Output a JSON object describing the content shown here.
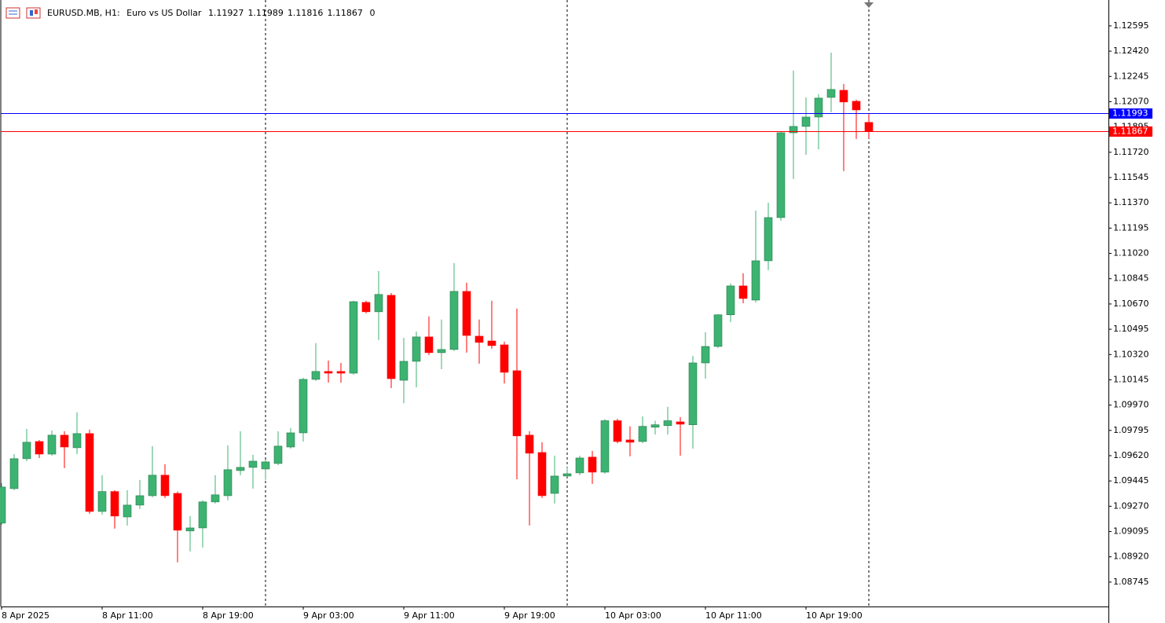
{
  "header": {
    "symbol": "EURUSD.MB, H1:",
    "description": "Euro vs US Dollar",
    "ohlc": [
      1.11927,
      1.11989,
      1.11816,
      1.11867
    ],
    "spread": 0
  },
  "chart_data": {
    "type": "candlestick",
    "categories": [
      "8 Apr 2025",
      null,
      null,
      null,
      null,
      null,
      null,
      null,
      "8 Apr 11:00",
      null,
      null,
      null,
      null,
      null,
      null,
      null,
      "8 Apr 19:00",
      null,
      null,
      null,
      null,
      null,
      null,
      null,
      "9 Apr 03:00",
      null,
      null,
      null,
      null,
      null,
      null,
      null,
      "9 Apr 11:00",
      null,
      null,
      null,
      null,
      null,
      null,
      null,
      "9 Apr 19:00",
      null,
      null,
      null,
      null,
      null,
      null,
      null,
      "10 Apr 03:00",
      null,
      null,
      null,
      null,
      null,
      null,
      null,
      "10 Apr 11:00",
      null,
      null,
      null,
      null,
      null,
      null,
      null,
      "10 Apr 19:00",
      null,
      null,
      null,
      null,
      null
    ],
    "open": [
      1.09153,
      1.09392,
      1.09599,
      1.09718,
      1.09631,
      1.09762,
      1.09675,
      1.09773,
      1.09234,
      1.09372,
      1.09196,
      1.09278,
      1.09343,
      1.09485,
      1.09359,
      1.09099,
      1.0912,
      1.093,
      1.09343,
      1.09517,
      1.09539,
      1.09528,
      1.09566,
      1.0968,
      1.09778,
      1.10148,
      1.10203,
      1.10203,
      1.10191,
      1.10681,
      1.10616,
      1.1073,
      1.10142,
      1.10273,
      1.10442,
      1.10333,
      1.10355,
      1.10757,
      1.10447,
      1.10414,
      1.10387,
      1.10208,
      1.09762,
      1.09642,
      1.09359,
      1.09479,
      1.09501,
      1.0961,
      1.09506,
      1.09862,
      1.09729,
      1.09718,
      1.09817,
      1.09828,
      1.09854,
      1.09834,
      1.10262,
      1.10376,
      1.10595,
      1.10795,
      1.10697,
      1.10969,
      1.11268,
      1.11855,
      1.11899,
      1.11964,
      1.121,
      1.12149,
      1.12073,
      1.11927
    ],
    "high": [
      1.0943,
      1.09631,
      1.09805,
      1.09729,
      1.09794,
      1.09789,
      1.09919,
      1.098,
      1.09485,
      1.09381,
      1.09381,
      1.09452,
      1.09686,
      1.09561,
      1.09372,
      1.09202,
      1.09311,
      1.09485,
      1.09691,
      1.09789,
      1.09626,
      1.09593,
      1.09789,
      1.09811,
      1.10159,
      1.10399,
      1.10278,
      1.10262,
      1.10692,
      1.10692,
      1.10898,
      1.10746,
      1.10436,
      1.10479,
      1.10584,
      1.10562,
      1.10953,
      1.10817,
      1.10562,
      1.10692,
      1.10409,
      1.10638,
      1.09789,
      1.09713,
      1.0962,
      1.09539,
      1.0962,
      1.09653,
      1.09873,
      1.09876,
      1.09823,
      1.09892,
      1.09862,
      1.09958,
      1.09887,
      1.10311,
      1.10474,
      1.106,
      1.10812,
      1.10882,
      1.11317,
      1.11371,
      1.11866,
      1.12285,
      1.121,
      1.12122,
      1.1241,
      1.12193,
      1.12084,
      1.11989
    ],
    "low": [
      1.09142,
      1.09381,
      1.09582,
      1.09604,
      1.0962,
      1.09534,
      1.09631,
      1.09218,
      1.09212,
      1.09115,
      1.09137,
      1.09251,
      1.09332,
      1.09327,
      1.08882,
      1.08957,
      1.08984,
      1.09289,
      1.09311,
      1.09485,
      1.09392,
      1.09452,
      1.09555,
      1.09669,
      1.09718,
      1.10137,
      1.10126,
      1.10126,
      1.10181,
      1.10605,
      1.1042,
      1.10088,
      1.09983,
      1.10093,
      1.10316,
      1.10219,
      1.10344,
      1.10333,
      1.10257,
      1.1036,
      1.1012,
      1.09457,
      1.09137,
      1.09327,
      1.09289,
      1.09474,
      1.09485,
      1.09425,
      1.09495,
      1.09706,
      1.09615,
      1.09707,
      1.09767,
      1.09767,
      1.0962,
      1.09669,
      1.10153,
      1.10366,
      1.10545,
      1.10675,
      1.10681,
      1.10904,
      1.11246,
      1.11535,
      1.11703,
      1.11741,
      1.11997,
      1.11589,
      1.11812,
      1.11816
    ],
    "close": [
      1.09403,
      1.09599,
      1.09713,
      1.09631,
      1.09762,
      1.0968,
      1.09773,
      1.09234,
      1.09372,
      1.09202,
      1.09278,
      1.09343,
      1.09485,
      1.09343,
      1.09104,
      1.0912,
      1.093,
      1.09349,
      1.09523,
      1.09539,
      1.09582,
      1.09577,
      1.09686,
      1.09778,
      1.10148,
      1.10203,
      1.10191,
      1.10191,
      1.10686,
      1.10616,
      1.10736,
      1.10153,
      1.10273,
      1.10442,
      1.10333,
      1.10355,
      1.10757,
      1.10452,
      1.10404,
      1.10382,
      1.10197,
      1.09757,
      1.09637,
      1.09343,
      1.09479,
      1.09495,
      1.09604,
      1.09506,
      1.09862,
      1.09718,
      1.09713,
      1.09823,
      1.09834,
      1.09862,
      1.09838,
      1.10262,
      1.10376,
      1.10595,
      1.10795,
      1.10708,
      1.10969,
      1.11268,
      1.11855,
      1.11899,
      1.11964,
      1.12095,
      1.12155,
      1.12068,
      1.12013,
      1.11867
    ],
    "up_color": "#3cb371",
    "down_color": "#ff0000",
    "ylim": [
      1.08576,
      1.12774
    ],
    "yticks": [
      1.12595,
      {
        "value": 1.1242,
        "label": "1.12420"
      },
      1.12245,
      {
        "value": 1.1207,
        "label": "1.12070"
      },
      1.11895,
      {
        "value": 1.1172,
        "label": "1.11720"
      },
      1.11545,
      {
        "value": 1.1137,
        "label": "1.11370"
      },
      1.11195,
      {
        "value": 1.1102,
        "label": "1.11020"
      },
      1.10845,
      {
        "value": 1.1067,
        "label": "1.10670"
      },
      1.10495,
      {
        "value": 1.1032,
        "label": "1.10320"
      },
      1.10145,
      {
        "value": 1.0997,
        "label": "1.09970"
      },
      1.09795,
      {
        "value": 1.0962,
        "label": "1.09620"
      },
      1.09445,
      {
        "value": 1.0927,
        "label": "1.09270"
      },
      1.09095,
      {
        "value": 1.0892,
        "label": "1.08920"
      },
      1.08745
    ],
    "price_lines": [
      {
        "value": 1.11993,
        "color": "#0000ff"
      },
      {
        "value": 1.11867,
        "color": "#ff0000"
      }
    ]
  }
}
